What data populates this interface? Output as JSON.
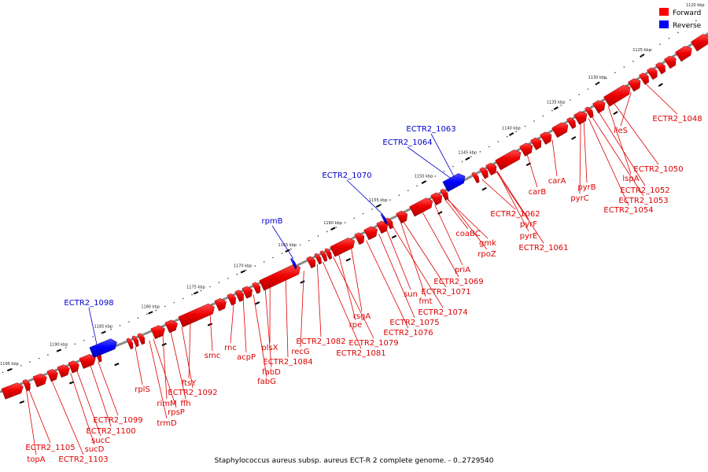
{
  "caption": "Staphylococcus aureus subsp. aureus ECT-R 2 complete genome. - 0..2729540",
  "legend": {
    "forward": {
      "label": "Forward",
      "color": "#ff0000"
    },
    "reverse": {
      "label": "Reverse",
      "color": "#0000ff"
    }
  },
  "colors": {
    "forward": "#ee0000",
    "forward_top": "#ff4040",
    "reverse": "#0000ff",
    "backbone": "#909090"
  },
  "corner_tick": "1120 kbp",
  "ticks": [
    "1125 kbp",
    "1130 kbp",
    "1135 kbp",
    "1140 kbp",
    "1145 kbp",
    "1150 kbp",
    "1155 kbp",
    "1160 kbp",
    "1165 kbp",
    "1170 kbp",
    "1175 kbp",
    "1180 kbp",
    "1185 kbp",
    "1190 kbp",
    "1195 kbp"
  ],
  "forward_labels": [
    "ECTR2_1048",
    "ileS",
    "ECTR2_1050",
    "lspA",
    "ECTR2_1052",
    "pyrB",
    "ECTR2_1053",
    "pyrC",
    "ECTR2_1054",
    "carA",
    "carB",
    "ECTR2_1061",
    "pyrE",
    "pyrF",
    "ECTR2_1062",
    "rpoZ",
    "gmk",
    "coaBC",
    "priA",
    "ECTR2_1069",
    "ECTR2_1071",
    "fmt",
    "sun",
    "ECTR2_1074",
    "ECTR2_1075",
    "ECTR2_1076",
    "rsgA",
    "rpe",
    "ECTR2_1079",
    "ECTR2_1081",
    "ECTR2_1082",
    "recG",
    "ECTR2_1084",
    "plsX",
    "fabD",
    "fabG",
    "acpP",
    "rnc",
    "smc",
    "ftsY",
    "ECTR2_1092",
    "ffh",
    "rimM",
    "rpsP",
    "trmD",
    "rplS",
    "ECTR2_1099",
    "ECTR2_1100",
    "sucC",
    "sucD",
    "ECTR2_1103",
    "ECTR2_1105",
    "topA"
  ],
  "reverse_labels": [
    "ECTR2_1063",
    "ECTR2_1064",
    "ECTR2_1070",
    "rpmB",
    "ECTR2_1098"
  ]
}
